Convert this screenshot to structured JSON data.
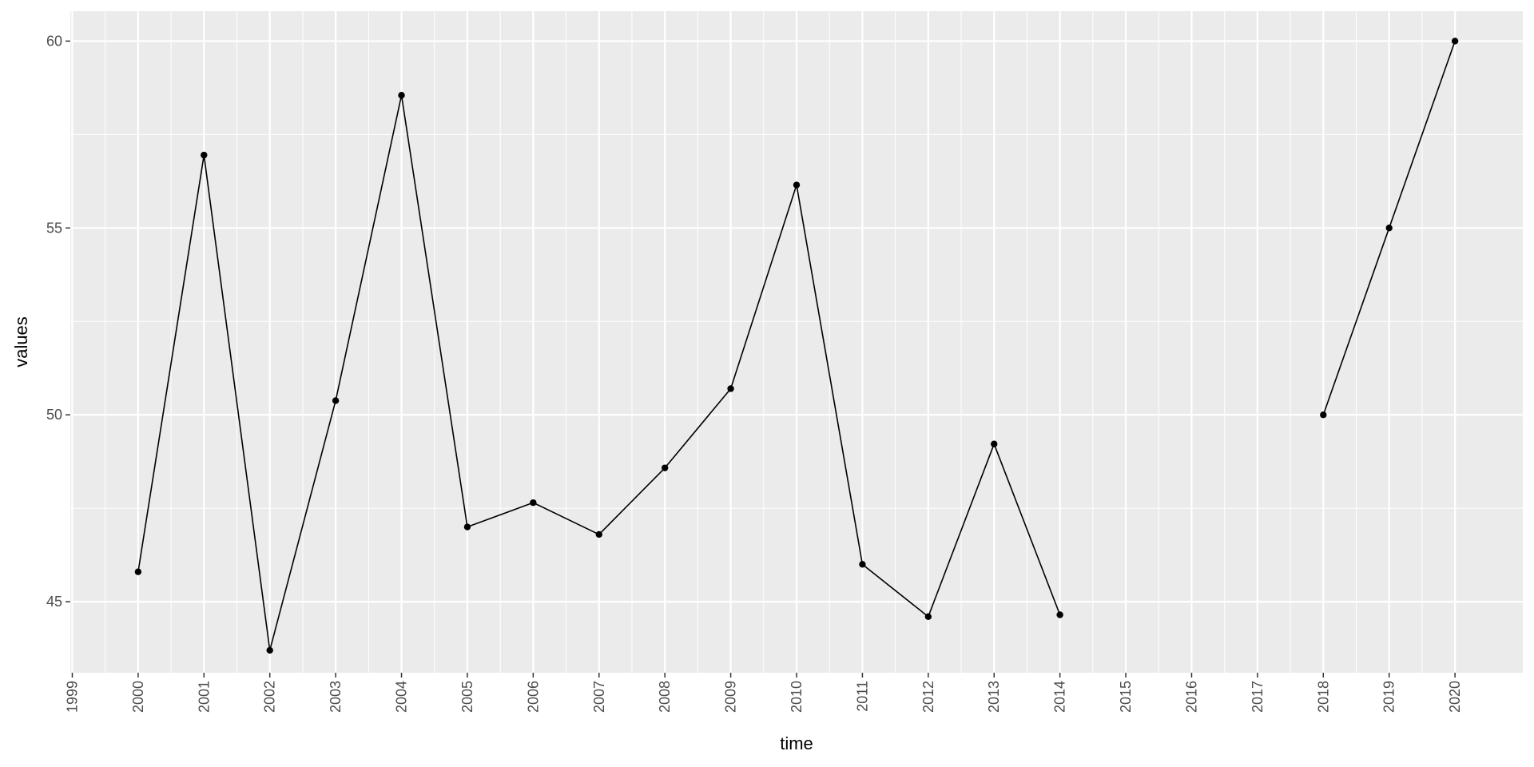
{
  "chart_data": {
    "type": "line",
    "title": "",
    "xlabel": "time",
    "ylabel": "values",
    "x_ticks": [
      "1999",
      "2000",
      "2001",
      "2002",
      "2003",
      "2004",
      "2005",
      "2006",
      "2007",
      "2008",
      "2009",
      "2010",
      "2011",
      "2012",
      "2013",
      "2014",
      "2015",
      "2016",
      "2017",
      "2018",
      "2019",
      "2020"
    ],
    "y_ticks": [
      45,
      50,
      55,
      60
    ],
    "xlim": [
      1998.97,
      2021.03
    ],
    "ylim": [
      43.1,
      60.8
    ],
    "grid": true,
    "legend": "none",
    "panel_background": "#ebebeb",
    "grid_color": "#ffffff",
    "line_color": "#000000",
    "point_color": "#000000",
    "series": [
      {
        "segments": [
          [
            {
              "x": 2000,
              "y": 45.8
            },
            {
              "x": 2001,
              "y": 56.95
            },
            {
              "x": 2002,
              "y": 43.7
            },
            {
              "x": 2003,
              "y": 50.38
            },
            {
              "x": 2004,
              "y": 58.55
            },
            {
              "x": 2005,
              "y": 47.0
            },
            {
              "x": 2006,
              "y": 47.65
            },
            {
              "x": 2007,
              "y": 46.8
            },
            {
              "x": 2008,
              "y": 48.58
            },
            {
              "x": 2009,
              "y": 50.7
            },
            {
              "x": 2010,
              "y": 56.15
            },
            {
              "x": 2011,
              "y": 46.0
            },
            {
              "x": 2012,
              "y": 44.6
            },
            {
              "x": 2013,
              "y": 49.22
            },
            {
              "x": 2014,
              "y": 44.65
            }
          ],
          [
            {
              "x": 2018,
              "y": 50.0
            },
            {
              "x": 2019,
              "y": 55.0
            },
            {
              "x": 2020,
              "y": 60.0
            }
          ]
        ]
      }
    ]
  }
}
